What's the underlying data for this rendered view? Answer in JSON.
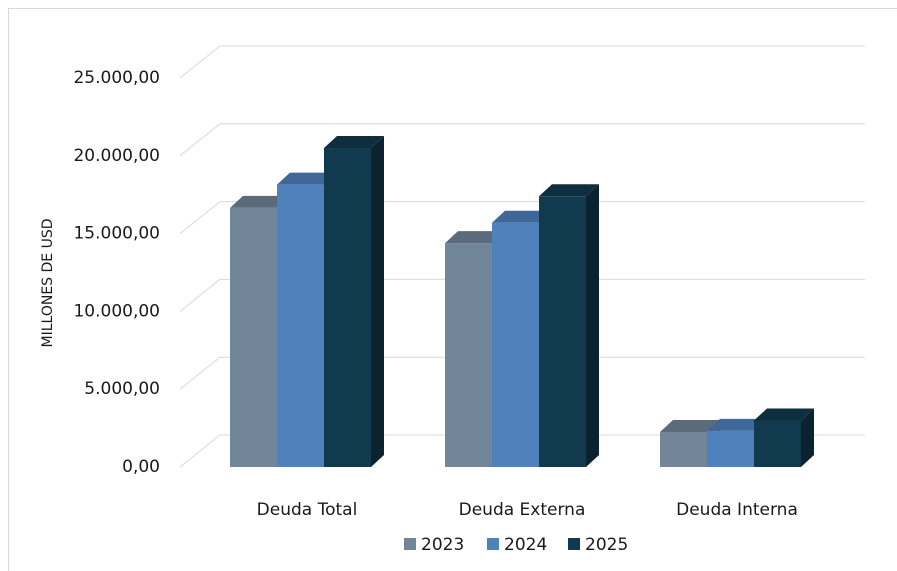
{
  "chart_data": {
    "type": "bar",
    "style": "3d-clustered-column",
    "categories": [
      "Deuda Total",
      "Deuda Externa",
      "Deuda Interna"
    ],
    "series": [
      {
        "name": "2023",
        "color": "#72869a",
        "values": [
          16650,
          14390,
          2250
        ]
      },
      {
        "name": "2024",
        "color": "#4f81bd",
        "values": [
          18150,
          15700,
          2320
        ]
      },
      {
        "name": "2025",
        "color": "#123a4e",
        "values": [
          20500,
          17400,
          2990
        ]
      }
    ],
    "ylabel": "MILLONES DE USD",
    "ylim": [
      0,
      25000
    ],
    "yticks": [
      0,
      5000,
      10000,
      15000,
      20000,
      25000
    ],
    "ytick_labels": [
      "0,00",
      "5.000,00",
      "10.000,00",
      "15.000,00",
      "20.000,00",
      "25.000,00"
    ],
    "grid": true,
    "legend": "bottom"
  }
}
